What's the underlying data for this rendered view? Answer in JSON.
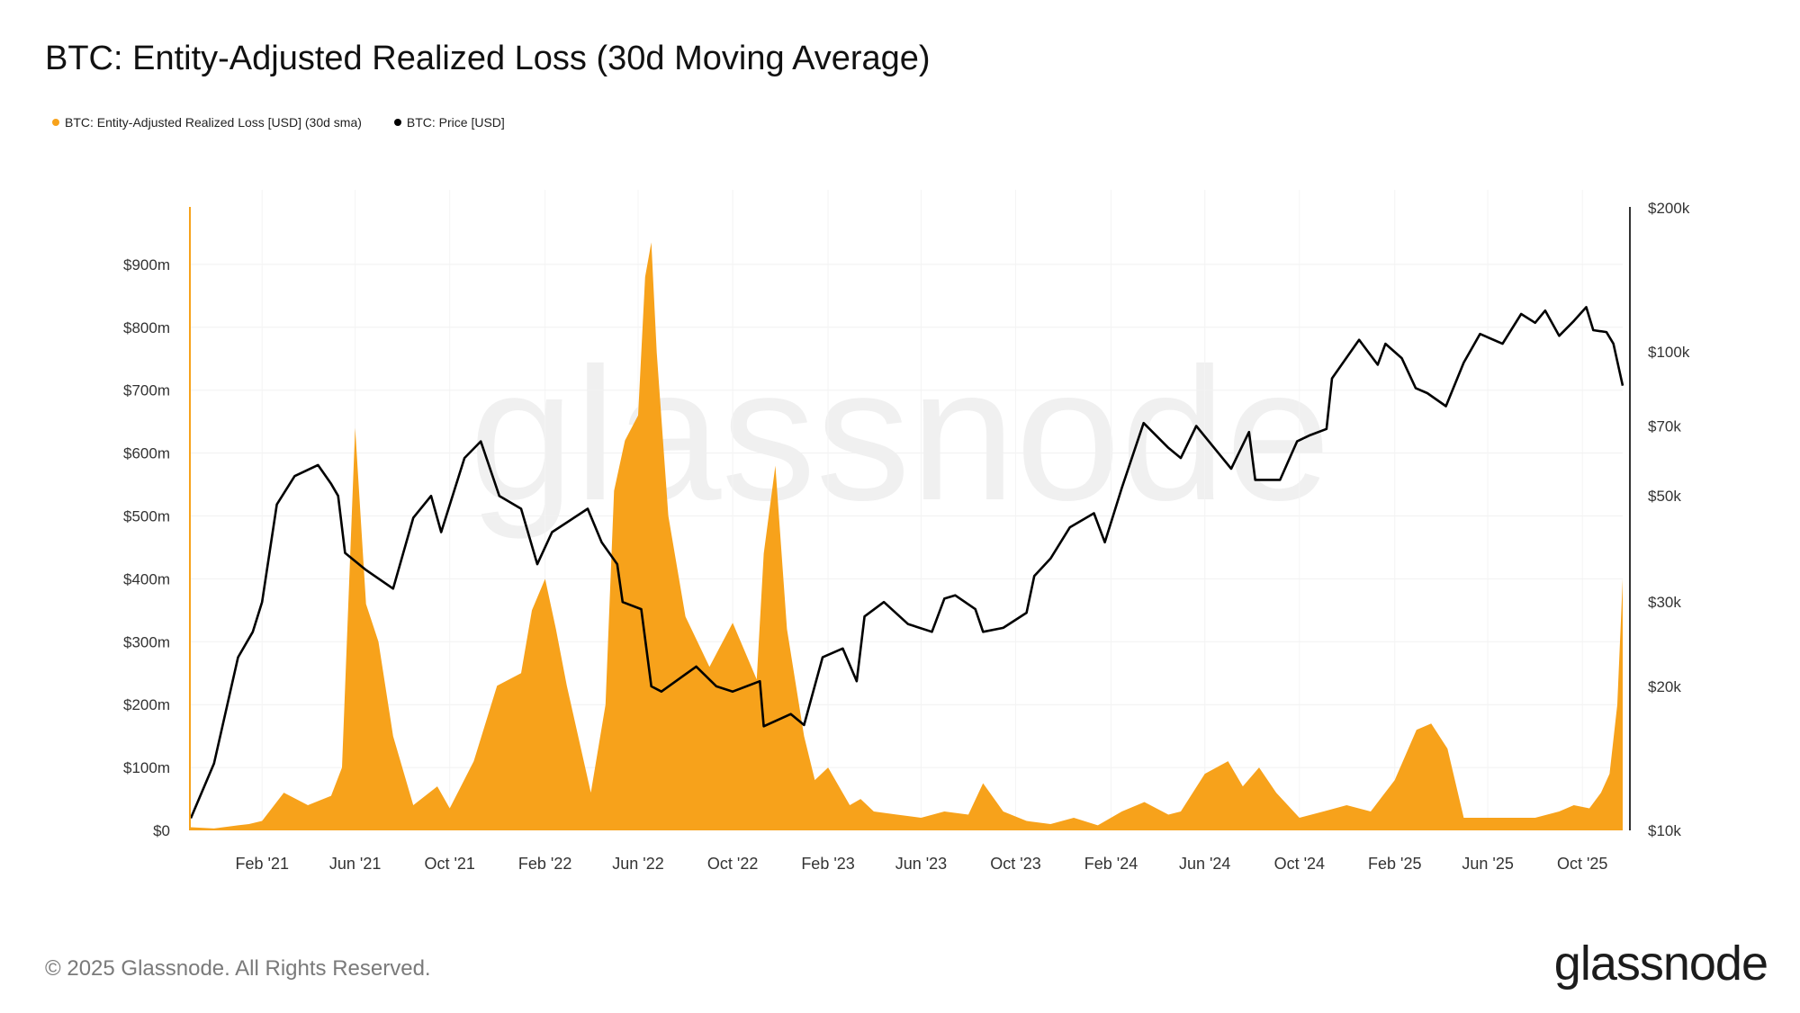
{
  "title": "BTC: Entity-Adjusted Realized Loss (30d Moving Average)",
  "legend": [
    {
      "label": "BTC: Entity-Adjusted Realized Loss [USD] (30d sma)",
      "color": "#f7a21b"
    },
    {
      "label": "BTC: Price [USD]",
      "color": "#000000"
    }
  ],
  "footer": "© 2025 Glassnode. All Rights Reserved.",
  "logo": "glassnode",
  "watermark": "glassnode",
  "chart_data": {
    "type": "area",
    "grid": true,
    "legend_position": "top-left",
    "x_ticks": [
      "Feb '21",
      "Jun '21",
      "Oct '21",
      "Feb '22",
      "Jun '22",
      "Oct '22",
      "Feb '23",
      "Jun '23",
      "Oct '23",
      "Feb '24",
      "Jun '24",
      "Oct '24",
      "Feb '25",
      "Jun '25",
      "Oct '25"
    ],
    "y_left": {
      "ticks": [
        "$0",
        "$100m",
        "$200m",
        "$300m",
        "$400m",
        "$500m",
        "$600m",
        "$700m",
        "$800m",
        "$900m"
      ],
      "range_musd": [
        0,
        990
      ]
    },
    "y_right": {
      "scale": "log",
      "ticks": [
        "$10k",
        "$20k",
        "$30k",
        "$50k",
        "$70k",
        "$100k",
        "$200k"
      ],
      "tick_values_usd": [
        10000,
        20000,
        30000,
        50000,
        70000,
        100000,
        200000
      ],
      "range_usd": [
        10000,
        200000
      ]
    },
    "series": [
      {
        "name": "BTC: Entity-Adjusted Realized Loss [USD] (30d sma)",
        "color": "#f7a21b",
        "axis": "left",
        "unit": "USD millions",
        "x": [
          "2020-11-01",
          "2020-12-01",
          "2021-01-01",
          "2021-01-15",
          "2021-02-01",
          "2021-03-01",
          "2021-04-01",
          "2021-05-01",
          "2021-05-15",
          "2021-06-01",
          "2021-06-15",
          "2021-07-01",
          "2021-07-20",
          "2021-08-15",
          "2021-09-15",
          "2021-10-01",
          "2021-11-01",
          "2021-12-01",
          "2022-01-01",
          "2022-01-15",
          "2022-02-01",
          "2022-02-15",
          "2022-03-01",
          "2022-04-01",
          "2022-04-20",
          "2022-05-01",
          "2022-05-15",
          "2022-06-01",
          "2022-06-10",
          "2022-06-18",
          "2022-06-25",
          "2022-07-10",
          "2022-08-01",
          "2022-09-01",
          "2022-10-01",
          "2022-11-01",
          "2022-11-10",
          "2022-11-25",
          "2022-12-10",
          "2023-01-01",
          "2023-01-15",
          "2023-02-01",
          "2023-03-01",
          "2023-03-15",
          "2023-04-01",
          "2023-05-01",
          "2023-06-01",
          "2023-07-01",
          "2023-08-01",
          "2023-08-20",
          "2023-09-15",
          "2023-10-15",
          "2023-11-15",
          "2023-12-15",
          "2024-01-15",
          "2024-02-15",
          "2024-03-15",
          "2024-04-15",
          "2024-05-01",
          "2024-06-01",
          "2024-07-01",
          "2024-07-20",
          "2024-08-10",
          "2024-09-01",
          "2024-10-01",
          "2024-11-01",
          "2024-12-01",
          "2025-01-01",
          "2025-02-01",
          "2025-03-01",
          "2025-03-20",
          "2025-04-10",
          "2025-05-01",
          "2025-06-01",
          "2025-07-01",
          "2025-08-01",
          "2025-09-01",
          "2025-09-20",
          "2025-10-10",
          "2025-10-25",
          "2025-11-05",
          "2025-11-15",
          "2025-11-22"
        ],
        "values": [
          5,
          3,
          8,
          10,
          15,
          60,
          40,
          55,
          100,
          640,
          360,
          300,
          150,
          40,
          70,
          35,
          110,
          230,
          250,
          350,
          400,
          320,
          230,
          60,
          200,
          540,
          620,
          660,
          880,
          935,
          760,
          500,
          340,
          260,
          330,
          240,
          440,
          580,
          320,
          150,
          80,
          100,
          40,
          50,
          30,
          25,
          20,
          30,
          25,
          75,
          30,
          15,
          10,
          20,
          8,
          30,
          45,
          25,
          30,
          90,
          110,
          70,
          100,
          60,
          20,
          30,
          40,
          30,
          80,
          160,
          170,
          130,
          20,
          20,
          20,
          20,
          30,
          40,
          35,
          60,
          90,
          200,
          400
        ]
      },
      {
        "name": "BTC: Price [USD]",
        "color": "#000000",
        "axis": "right",
        "unit": "USD",
        "x": [
          "2020-11-01",
          "2020-12-01",
          "2021-01-01",
          "2021-01-20",
          "2021-02-01",
          "2021-02-20",
          "2021-03-15",
          "2021-04-14",
          "2021-05-01",
          "2021-05-10",
          "2021-05-19",
          "2021-06-15",
          "2021-07-20",
          "2021-08-15",
          "2021-09-07",
          "2021-09-20",
          "2021-10-20",
          "2021-11-10",
          "2021-12-04",
          "2022-01-01",
          "2022-01-22",
          "2022-02-10",
          "2022-03-28",
          "2022-04-15",
          "2022-05-05",
          "2022-05-12",
          "2022-06-05",
          "2022-06-18",
          "2022-07-01",
          "2022-08-15",
          "2022-09-10",
          "2022-10-01",
          "2022-11-05",
          "2022-11-10",
          "2022-12-15",
          "2023-01-01",
          "2023-01-25",
          "2023-02-20",
          "2023-03-10",
          "2023-03-20",
          "2023-04-14",
          "2023-05-15",
          "2023-06-15",
          "2023-07-01",
          "2023-07-15",
          "2023-08-10",
          "2023-08-20",
          "2023-09-15",
          "2023-10-15",
          "2023-10-25",
          "2023-11-15",
          "2023-12-10",
          "2024-01-10",
          "2024-01-24",
          "2024-02-15",
          "2024-03-14",
          "2024-04-15",
          "2024-05-01",
          "2024-05-21",
          "2024-07-05",
          "2024-07-28",
          "2024-08-05",
          "2024-09-06",
          "2024-09-28",
          "2024-10-15",
          "2024-11-05",
          "2024-11-12",
          "2024-12-17",
          "2025-01-10",
          "2025-01-20",
          "2025-02-10",
          "2025-02-28",
          "2025-03-15",
          "2025-04-08",
          "2025-05-01",
          "2025-05-22",
          "2025-06-20",
          "2025-07-14",
          "2025-08-01",
          "2025-08-14",
          "2025-09-01",
          "2025-09-20",
          "2025-10-06",
          "2025-10-15",
          "2025-11-01",
          "2025-11-10",
          "2025-11-22"
        ],
        "values": [
          10600,
          13800,
          23000,
          26000,
          30000,
          48000,
          55000,
          58000,
          53000,
          50000,
          38000,
          35000,
          32000,
          45000,
          50000,
          42000,
          60000,
          65000,
          50000,
          47000,
          36000,
          42000,
          47000,
          40000,
          36000,
          30000,
          29000,
          20000,
          19500,
          22000,
          20000,
          19500,
          20500,
          16500,
          17500,
          16600,
          23000,
          24000,
          20500,
          28000,
          30000,
          27000,
          26000,
          30500,
          31000,
          29000,
          26000,
          26500,
          28500,
          34000,
          37000,
          43000,
          46000,
          40000,
          52000,
          71000,
          63000,
          60000,
          70000,
          57000,
          68000,
          54000,
          54000,
          65000,
          67000,
          69000,
          88000,
          106000,
          94000,
          104000,
          97000,
          84000,
          82000,
          77000,
          95000,
          109000,
          104000,
          120000,
          115000,
          122000,
          108000,
          116000,
          124000,
          111000,
          110000,
          104000,
          85000
        ]
      }
    ]
  }
}
